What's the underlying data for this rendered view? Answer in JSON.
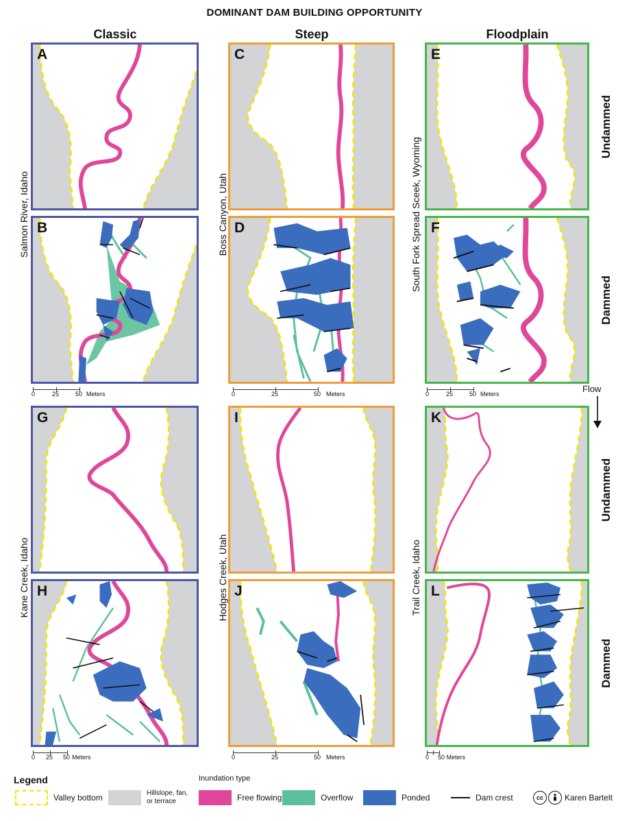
{
  "title": "DOMINANT DAM BUILDING OPPORTUNITY",
  "columns": {
    "classic": "Classic",
    "steep": "Steep",
    "floodplain": "Floodplain"
  },
  "sites": {
    "salmon": "Salmon River, Idaho",
    "boss": "Boss Canyon, Utah",
    "southfork": "South Fork Spread Sceek, Wyoming",
    "kane": "Kane Creek, Idaho",
    "hodges": "Hodges Creek, Utah",
    "trail": "Trail Creek, Idaho"
  },
  "row_labels": {
    "undammed_top": "Undammed",
    "dammed_top": "Dammed",
    "undammed_bottom": "Undammed",
    "dammed_bottom": "Dammed"
  },
  "panels": {
    "A": "A",
    "B": "B",
    "C": "C",
    "D": "D",
    "E": "E",
    "F": "F",
    "G": "G",
    "H": "H",
    "I": "I",
    "J": "J",
    "K": "K",
    "L": "L"
  },
  "scales": {
    "zero": "0",
    "twentyfive": "25",
    "fifty": "50",
    "meters": "Meters",
    "meters_trunc": "Meters",
    "fifty_meters_tight": "50 Meters"
  },
  "flow_label": "Flow",
  "legend": {
    "title": "Legend",
    "inundation_type": "Inundation type",
    "valley_bottom": "Valley bottom",
    "hillslope_line1": "Hillslope, fan,",
    "hillslope_line2": "or terrace",
    "free_flowing": "Free flowing",
    "overflow": "Overflow",
    "ponded": "Ponded",
    "dam_crest": "Dam crest",
    "credit": "Karen Bartelt",
    "cc": "cc"
  },
  "colors": {
    "classic_border": "#4a56a6",
    "steep_border": "#ee9c3a",
    "floodplain_border": "#44b649",
    "hillslope": "#d3d4d6",
    "valley_line": "#f4e600",
    "free_flowing": "#e0479a",
    "overflow": "#5cc09a",
    "ponded": "#3b6dbf",
    "dam_crest": "#111111"
  }
}
